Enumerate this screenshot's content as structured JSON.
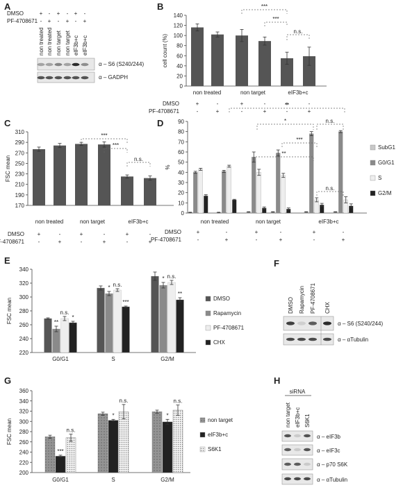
{
  "panels": {
    "A": {
      "label": "A",
      "treatments": [
        {
          "name": "DMSO",
          "signs": [
            "+",
            "-",
            "+",
            "-",
            "+",
            "-"
          ]
        },
        {
          "name": "PF-4708671",
          "signs": [
            "-",
            "+",
            "-",
            "+",
            "-",
            "+"
          ]
        }
      ],
      "lanes": [
        "non treated",
        "non treated",
        "non target",
        "non target",
        "eIF3b+c",
        "eIF3b+c"
      ],
      "blots": [
        "α – S6  (S240/244)",
        "α – GADPH"
      ]
    },
    "B": {
      "label": "B",
      "treatments": [
        {
          "name": "DMSO",
          "signs": [
            "+",
            "-",
            "+",
            "-",
            "+",
            "-"
          ]
        },
        {
          "name": "PF-4708671",
          "signs": [
            "-",
            "+",
            "-",
            "+",
            "-",
            "+"
          ]
        }
      ],
      "groups": [
        "non treated",
        "non target",
        "eIF3b+c"
      ],
      "sig": [
        "***",
        "***",
        "n.s."
      ]
    },
    "C": {
      "label": "C",
      "treatments": [
        {
          "name": "DMSO",
          "signs": [
            "+",
            "-",
            "+",
            "-",
            "+",
            "-"
          ]
        },
        {
          "name": "PF-4708671",
          "signs": [
            "-",
            "+",
            "-",
            "+",
            "-",
            "+"
          ]
        }
      ],
      "groups": [
        "non treated",
        "non target",
        "eIF3b+c"
      ],
      "sig": [
        "***",
        "***",
        "n.s."
      ]
    },
    "D": {
      "label": "D",
      "treatments": [
        {
          "name": "DMSO",
          "signs": [
            "+",
            "-",
            "+",
            "-",
            "+",
            "-"
          ]
        },
        {
          "name": "PF-4708671",
          "signs": [
            "-",
            "+",
            "-",
            "+",
            "-",
            "+"
          ]
        }
      ],
      "groups": [
        "non treated",
        "non target",
        "eIF3b+c"
      ],
      "sig": [
        "**",
        "*",
        "n.s.",
        "***",
        "**",
        "n.s."
      ]
    },
    "E": {
      "label": "E",
      "sig": [
        "**",
        "n.s.",
        "*",
        "*",
        "n.s.",
        "***",
        "*",
        "n.s.",
        "**"
      ]
    },
    "F": {
      "label": "F",
      "lanes": [
        "DMSO",
        "Rapamycin",
        "PF-4708671",
        "CHX"
      ],
      "blots": [
        "α – S6  (S240/244)",
        "α – αTubulin"
      ]
    },
    "G": {
      "label": "G",
      "sig": [
        "***",
        "n.s.",
        "*",
        "n.s.",
        "*",
        "n.s."
      ]
    },
    "H": {
      "label": "H",
      "header": "siRNA",
      "lanes": [
        "non target",
        "eIF3b+c",
        "S6K1"
      ],
      "blots": [
        "α – eIF3b",
        "α – eIF3c",
        "α – p70 S6K",
        "α – αTubulin"
      ]
    }
  },
  "colors": {
    "dark": "#555555",
    "mid": "#8a8a8a",
    "light": "#c8c8c8",
    "vlight": "#eeeeee",
    "black": "#222222"
  },
  "chart_data": [
    {
      "id": "B",
      "type": "bar",
      "ylabel": "cell count (%)",
      "ylim": [
        0,
        140
      ],
      "yticks": [
        0,
        20,
        40,
        60,
        80,
        100,
        120,
        140
      ],
      "categories": [
        "non treated DMSO",
        "non treated PF-4708671",
        "non target DMSO",
        "non target PF-4708671",
        "eIF3b+c DMSO",
        "eIF3b+c PF-4708671"
      ],
      "values": [
        116,
        102,
        100,
        89,
        55,
        59
      ],
      "errors": [
        7,
        5,
        12,
        8,
        12,
        18
      ]
    },
    {
      "id": "C",
      "type": "bar",
      "ylabel": "FSC mean",
      "ylim": [
        170,
        310
      ],
      "yticks": [
        170,
        190,
        210,
        230,
        250,
        270,
        290,
        310
      ],
      "categories": [
        "non treated DMSO",
        "non treated PF-4708671",
        "non target DMSO",
        "non target PF-4708671",
        "eIF3b+c DMSO",
        "eIF3b+c PF-4708671"
      ],
      "values": [
        277,
        284,
        287,
        286,
        225,
        222
      ],
      "errors": [
        4,
        4,
        3,
        5,
        3,
        4
      ]
    },
    {
      "id": "D",
      "type": "bar",
      "ylabel": "%",
      "ylim": [
        0,
        90
      ],
      "yticks": [
        0,
        10,
        20,
        30,
        40,
        50,
        60,
        70,
        80,
        90
      ],
      "categories": [
        "non treated DMSO",
        "non treated PF-4708671",
        "non target DMSO",
        "non target PF-4708671",
        "eIF3b+c DMSO",
        "eIF3b+c PF-4708671"
      ],
      "series": [
        {
          "name": "SubG1",
          "values": [
            0.5,
            0.5,
            1,
            1,
            1,
            1
          ],
          "errors": [
            0.3,
            0.3,
            0.3,
            0.3,
            0.3,
            0.3
          ]
        },
        {
          "name": "G0/G1",
          "values": [
            40,
            41,
            55,
            59,
            78,
            80
          ],
          "errors": [
            1,
            1,
            5,
            3,
            2,
            1
          ]
        },
        {
          "name": "S",
          "values": [
            43,
            46,
            40,
            37,
            13,
            13
          ],
          "errors": [
            1,
            1,
            3,
            2,
            2,
            3
          ]
        },
        {
          "name": "G2/M",
          "values": [
            17,
            13,
            5,
            4,
            8,
            7
          ],
          "errors": [
            1,
            0.5,
            1,
            1,
            1.5,
            2
          ]
        }
      ]
    },
    {
      "id": "E",
      "type": "bar",
      "ylabel": "FSC mean",
      "ylim": [
        220,
        340
      ],
      "yticks": [
        220,
        240,
        260,
        280,
        300,
        320,
        340
      ],
      "categories": [
        "G0/G1",
        "S",
        "G2/M"
      ],
      "series": [
        {
          "name": "DMSO",
          "values": [
            269,
            313,
            330
          ],
          "errors": [
            1,
            3,
            6
          ]
        },
        {
          "name": "Rapamycin",
          "values": [
            254,
            305,
            317
          ],
          "errors": [
            4,
            3,
            4
          ]
        },
        {
          "name": "PF-4708671",
          "values": [
            269,
            310,
            321
          ],
          "errors": [
            3,
            2,
            3
          ]
        },
        {
          "name": "CHX",
          "values": [
            263,
            286,
            296
          ],
          "errors": [
            2,
            1,
            3
          ]
        }
      ]
    },
    {
      "id": "G",
      "type": "bar",
      "ylabel": "FSC mean",
      "ylim": [
        200,
        360
      ],
      "yticks": [
        200,
        220,
        240,
        260,
        280,
        300,
        320,
        340,
        360
      ],
      "categories": [
        "G0/G1",
        "S",
        "G2/M"
      ],
      "series": [
        {
          "name": "non target",
          "values": [
            270,
            315,
            319
          ],
          "errors": [
            3,
            3,
            3
          ]
        },
        {
          "name": "eIF3b+c",
          "values": [
            232,
            302,
            299
          ],
          "errors": [
            2,
            2,
            5
          ]
        },
        {
          "name": "S6K1",
          "values": [
            268,
            319,
            322
          ],
          "errors": [
            7,
            14,
            10
          ]
        }
      ]
    }
  ]
}
